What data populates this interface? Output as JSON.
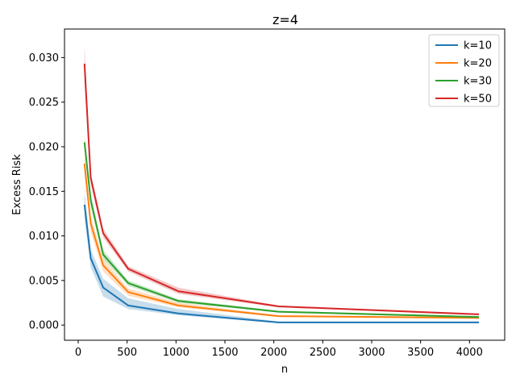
{
  "chart_data": {
    "type": "line",
    "title": "z=4",
    "xlabel": "n",
    "ylabel": "Excess Risk",
    "xlim": [
      -140,
      4360
    ],
    "ylim": [
      -0.0017,
      0.0332
    ],
    "xticks": [
      0,
      500,
      1000,
      1500,
      2000,
      2500,
      3000,
      3500,
      4000
    ],
    "xtick_labels": [
      "0",
      "500",
      "1000",
      "1500",
      "2000",
      "2500",
      "3000",
      "3500",
      "4000"
    ],
    "yticks": [
      0.0,
      0.005,
      0.01,
      0.015,
      0.02,
      0.025,
      0.03
    ],
    "ytick_labels": [
      "0.000",
      "0.005",
      "0.010",
      "0.015",
      "0.020",
      "0.025",
      "0.030"
    ],
    "grid": false,
    "legend_position": "top-right",
    "x": [
      64,
      128,
      256,
      512,
      1024,
      2048,
      4096
    ],
    "series": [
      {
        "name": "k=10",
        "color": "#1f77b4",
        "values": [
          0.0135,
          0.0075,
          0.0042,
          0.0022,
          0.0013,
          0.0003,
          0.0003
        ],
        "lower": [
          0.012,
          0.0065,
          0.0032,
          0.0018,
          0.0011,
          0.0002,
          0.0002
        ],
        "upper": [
          0.015,
          0.0085,
          0.0052,
          0.003,
          0.0018,
          0.0004,
          0.0004
        ]
      },
      {
        "name": "k=20",
        "color": "#ff7f0e",
        "values": [
          0.0181,
          0.0114,
          0.0067,
          0.0037,
          0.0022,
          0.001,
          0.0008
        ],
        "lower": [
          0.017,
          0.0105,
          0.006,
          0.0033,
          0.002,
          0.0009,
          0.0007
        ],
        "upper": [
          0.0192,
          0.0123,
          0.0074,
          0.0041,
          0.0025,
          0.0011,
          0.0009
        ]
      },
      {
        "name": "k=30",
        "color": "#2ca02c",
        "values": [
          0.0205,
          0.014,
          0.0079,
          0.0047,
          0.0027,
          0.0015,
          0.0009
        ],
        "lower": [
          0.0198,
          0.0133,
          0.0074,
          0.0044,
          0.0025,
          0.0014,
          0.0008
        ],
        "upper": [
          0.0212,
          0.0147,
          0.0084,
          0.005,
          0.0029,
          0.0016,
          0.001
        ]
      },
      {
        "name": "k=50",
        "color": "#d62728",
        "values": [
          0.0293,
          0.0165,
          0.0103,
          0.0063,
          0.0038,
          0.0021,
          0.0012
        ],
        "lower": [
          0.0272,
          0.0158,
          0.0098,
          0.006,
          0.0035,
          0.002,
          0.0011
        ],
        "upper": [
          0.0314,
          0.0172,
          0.0108,
          0.0066,
          0.0042,
          0.0022,
          0.0013
        ]
      }
    ]
  }
}
